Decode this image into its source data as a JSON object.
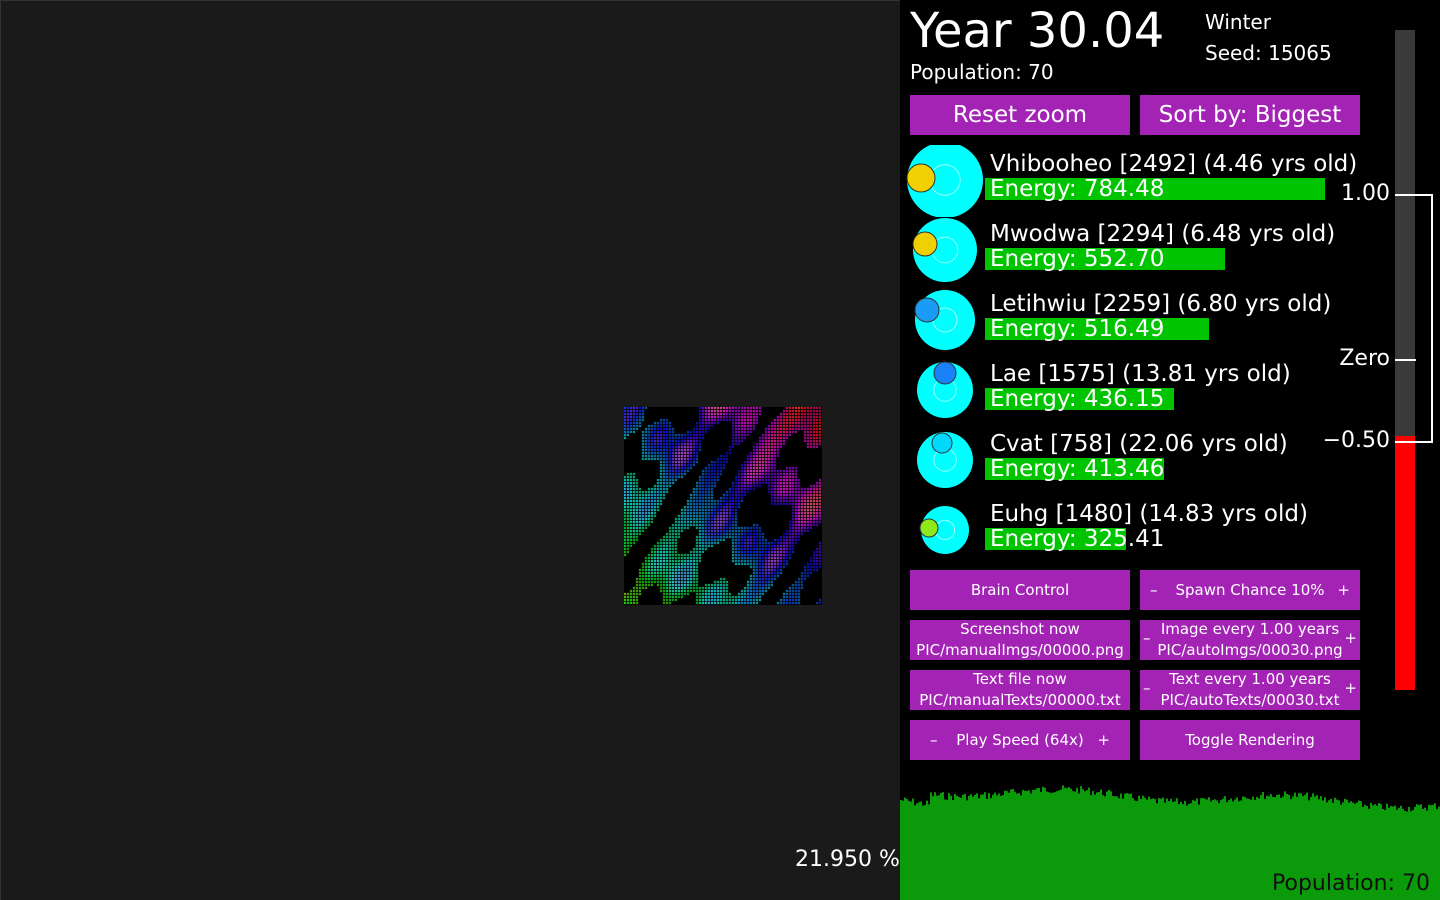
{
  "zoom_level": "21.950 %",
  "header": {
    "year": "Year 30.04",
    "season": "Winter",
    "seed": "Seed: 15065",
    "population": "Population: 70"
  },
  "top_buttons": {
    "reset_zoom": "Reset zoom",
    "sort": "Sort by: Biggest"
  },
  "creatures": [
    {
      "name": "Vhibooheo [2492] (4.46 yrs old)",
      "energy": "Energy: 784.48",
      "energy_fraction": 1.0,
      "body_color": "#00ffff",
      "mouth_color": "#f0d000"
    },
    {
      "name": "Mwodwa [2294] (6.48 yrs old)",
      "energy": "Energy: 552.70",
      "energy_fraction": 0.705,
      "body_color": "#00ffff",
      "mouth_color": "#f0d000"
    },
    {
      "name": "Letihwiu [2259] (6.80 yrs old)",
      "energy": "Energy: 516.49",
      "energy_fraction": 0.66,
      "body_color": "#00ffff",
      "mouth_color": "#1a9cf5"
    },
    {
      "name": "Lae [1575] (13.81 yrs old)",
      "energy": "Energy: 436.15",
      "energy_fraction": 0.557,
      "body_color": "#00ffff",
      "mouth_color": "#1a80f5"
    },
    {
      "name": "Cvat [758] (22.06 yrs old)",
      "energy": "Energy: 413.46",
      "energy_fraction": 0.527,
      "body_color": "#00ffff",
      "mouth_color": "#00d8ff"
    },
    {
      "name": "Euhg [1480] (14.83 yrs old)",
      "energy": "Energy: 325.41",
      "energy_fraction": 0.415,
      "body_color": "#00ffff",
      "mouth_color": "#8fe81a"
    }
  ],
  "controls": {
    "brain_control": "Brain Control",
    "spawn_chance": "Spawn Chance 10%",
    "screenshot_line1": "Screenshot now",
    "screenshot_line2": "PIC/manualImgs/00000.png",
    "image_every_line1": "Image every 1.00 years",
    "image_every_line2": "PIC/autoImgs/00030.png",
    "textfile_line1": "Text file now",
    "textfile_line2": "PIC/manualTexts/00000.txt",
    "text_every_line1": "Text every 1.00 years",
    "text_every_line2": "PIC/autoTexts/00030.txt",
    "play_speed": "Play Speed (64x)",
    "toggle_rendering": "Toggle Rendering",
    "minus": "–",
    "plus": "+"
  },
  "temperature_slider": {
    "max_label": "1.00",
    "zero_label": "Zero",
    "min_label": "−0.50",
    "level": 0.385
  },
  "population_graph": {
    "label": "Population: 70"
  },
  "colors": {
    "button": "#a323b5",
    "energy_bar": "#00c400",
    "slider_fill": "#ff0000",
    "graph": "#0a9a0a"
  }
}
